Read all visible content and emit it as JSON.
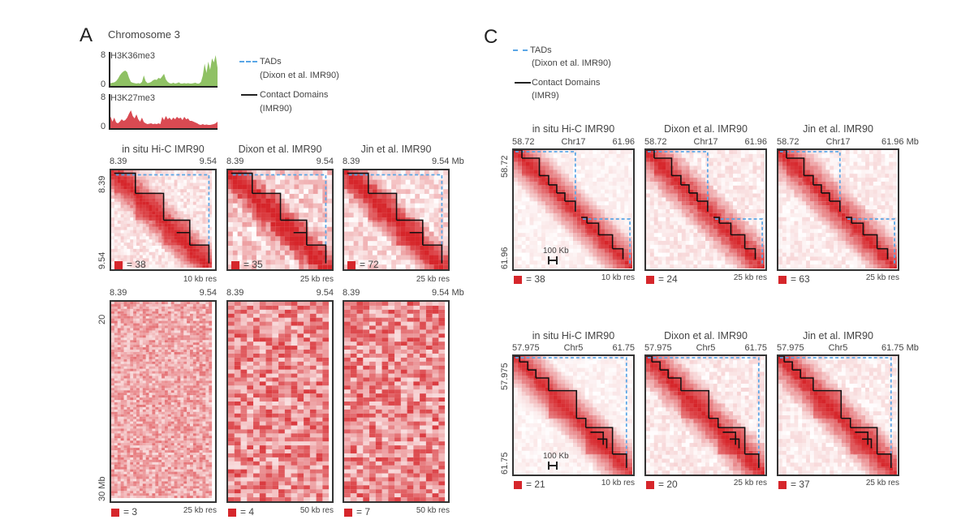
{
  "panel_a": {
    "letter": "A",
    "chromosome_title": "Chromosome 3",
    "tracks": [
      {
        "name": "H3K36me3",
        "ymax": "8",
        "ymin": "0",
        "color": "#8fc164",
        "values": [
          0.6,
          0.7,
          0.8,
          0.9,
          1.2,
          1.8,
          2.6,
          3.2,
          3.6,
          3.8,
          3.4,
          2.0,
          1.0,
          0.8,
          0.7,
          0.6,
          0.7,
          0.6,
          1.0,
          2.6,
          1.2,
          0.7,
          0.8,
          1.0,
          1.4,
          1.6,
          1.5,
          2.0,
          1.8,
          2.4,
          3.0,
          1.6,
          1.0,
          0.7,
          0.6,
          0.8,
          0.6,
          0.7,
          0.9,
          0.6,
          0.6,
          0.7,
          0.6,
          0.7,
          0.6,
          0.6,
          0.7,
          0.8,
          0.6,
          0.6,
          1.0,
          2.5,
          5.5,
          3.2,
          6.0,
          4.0,
          6.8,
          5.8,
          7.6,
          4.5
        ]
      },
      {
        "name": "H3K27me3",
        "ymax": "8",
        "ymin": "0",
        "color": "#d94a52",
        "values": [
          2.0,
          2.8,
          1.6,
          2.6,
          1.4,
          1.2,
          1.6,
          2.2,
          1.8,
          2.0,
          2.6,
          3.6,
          4.4,
          3.0,
          2.4,
          3.4,
          2.2,
          1.6,
          2.6,
          1.5,
          1.2,
          1.0,
          1.1,
          1.2,
          1.0,
          1.1,
          1.0,
          1.2,
          1.0,
          2.8,
          2.0,
          3.0,
          2.2,
          2.6,
          2.0,
          2.6,
          2.2,
          2.8,
          2.4,
          2.6,
          2.0,
          2.8,
          2.2,
          2.4,
          1.8,
          1.8,
          1.6,
          1.4,
          1.2,
          0.9,
          0.8,
          1.0,
          0.8,
          0.9,
          0.8,
          0.8,
          0.9,
          1.0,
          1.2,
          1.6
        ]
      }
    ],
    "legend": {
      "tads_label": "TADs",
      "tads_sub": "(Dixon et al. IMR90)",
      "domains_label": "Contact Domains",
      "domains_sub": "(IMR90)"
    },
    "top_row": [
      {
        "title": "in situ Hi-C IMR90",
        "x_start": "8.39",
        "x_end": "9.54",
        "y_start": "8.39",
        "y_end": "9.54",
        "scale_value": "= 38",
        "resolution": "10 kb res",
        "style": "smooth"
      },
      {
        "title": "Dixon et al. IMR90",
        "x_start": "8.39",
        "x_end": "9.54",
        "scale_value": "= 35",
        "resolution": "25 kb res",
        "style": "noisy"
      },
      {
        "title": "Jin et al. IMR90",
        "x_start": "8.39",
        "x_end": "9.54 Mb",
        "scale_value": "= 72",
        "resolution": "25 kb res",
        "style": "medium"
      }
    ],
    "bottom_row": [
      {
        "x_start": "8.39",
        "x_end": "9.54",
        "y_start": "20",
        "y_end": "30 Mb",
        "scale_value": "= 3",
        "resolution": "25 kb res"
      },
      {
        "x_start": "8.39",
        "x_end": "9.54",
        "scale_value": "= 4",
        "resolution": "50 kb res"
      },
      {
        "x_start": "8.39",
        "x_end": "9.54 Mb",
        "scale_value": "= 7",
        "resolution": "50 kb res"
      }
    ]
  },
  "panel_c": {
    "letter": "C",
    "legend": {
      "tads_label": "TADs",
      "tads_sub": "(Dixon et al. IMR90)",
      "domains_label": "Contact Domains",
      "domains_sub": "(IMR9)"
    },
    "chr17_row": [
      {
        "title": "in situ Hi-C IMR90",
        "x_start": "58.72",
        "x_mid": "Chr17",
        "x_end": "61.96",
        "y_start": "58.72",
        "y_end": "61.96",
        "scale_bar": "100 Kb",
        "scale_value": "= 38",
        "resolution": "10 kb res"
      },
      {
        "title": "Dixon et al. IMR90",
        "x_start": "58.72",
        "x_mid": "Chr17",
        "x_end": "61.96",
        "scale_value": "= 24",
        "resolution": "25 kb res"
      },
      {
        "title": "Jin et al. IMR90",
        "x_start": "58.72",
        "x_mid": "Chr17",
        "x_end": "61.96 Mb",
        "scale_value": "= 63",
        "resolution": "25 kb res"
      }
    ],
    "chr5_row": [
      {
        "title": "in situ Hi-C IMR90",
        "x_start": "57.975",
        "x_mid": "Chr5",
        "x_end": "61.75",
        "y_start": "57.975",
        "y_end": "61.75",
        "scale_bar": "100 Kb",
        "scale_value": "= 21",
        "resolution": "10 kb res"
      },
      {
        "title": "Dixon et al. IMR90",
        "x_start": "57.975",
        "x_mid": "Chr5",
        "x_end": "61.75",
        "scale_value": "= 20",
        "resolution": "25 kb res"
      },
      {
        "title": "Jin et al. IMR90",
        "x_start": "57.975",
        "x_mid": "Chr5",
        "x_end": "61.75 Mb",
        "scale_value": "= 37",
        "resolution": "25 kb res"
      }
    ]
  },
  "colors": {
    "heat": "#d6262b",
    "tad": "#5aa6e6",
    "domain": "#111111"
  }
}
